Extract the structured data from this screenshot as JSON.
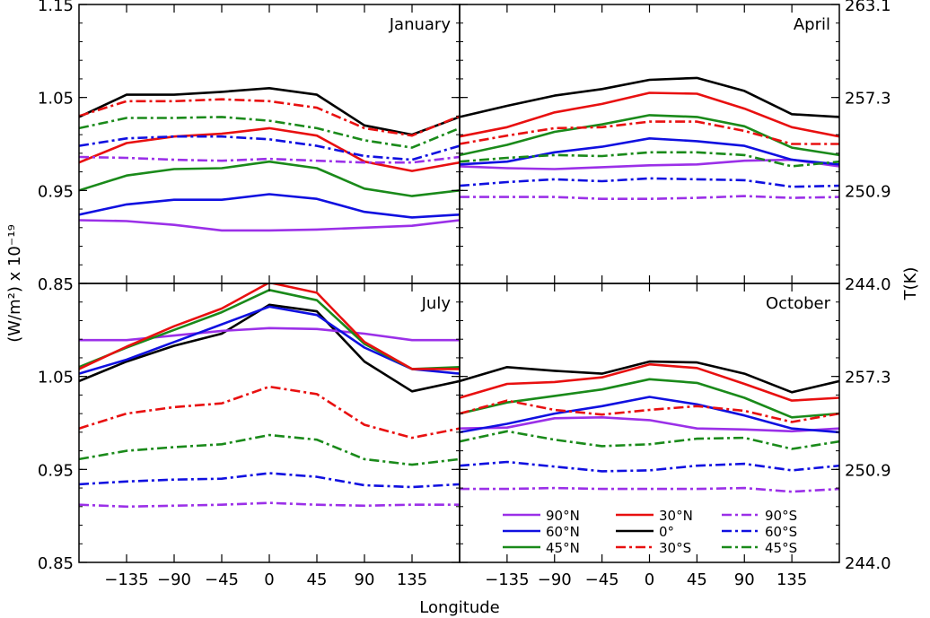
{
  "chart_data": {
    "type": "line",
    "x": [
      -180,
      -135,
      -90,
      -45,
      0,
      45,
      90,
      135,
      180
    ],
    "xlim": [
      -180,
      180
    ],
    "ylim": [
      0.85,
      1.15
    ],
    "xlabel": "Longitude",
    "ylabel": "(W/m²) x 10⁻¹⁹",
    "y2label": "T(K)",
    "xticks": [
      "-135",
      "-90",
      "-45",
      "0",
      "45",
      "90",
      "135"
    ],
    "yticks_top": [
      "0.85",
      "0.95",
      "1.05",
      "1.15"
    ],
    "yticks_bottom": [
      "0.85",
      "0.95",
      "1.05"
    ],
    "y2ticks_top": [
      "244.0",
      "250.9",
      "257.3",
      "263.1"
    ],
    "y2ticks_bottom": [
      "244.0",
      "250.9",
      "257.3"
    ],
    "series_style": {
      "90N": {
        "label": "90°N",
        "color": "#9b30e8",
        "dash": "solid"
      },
      "60N": {
        "label": "60°N",
        "color": "#1010e0",
        "dash": "solid"
      },
      "45N": {
        "label": "45°N",
        "color": "#1a8a1a",
        "dash": "solid"
      },
      "30N": {
        "label": "30°N",
        "color": "#e81010",
        "dash": "solid"
      },
      "0": {
        "label": "0°",
        "color": "#000000",
        "dash": "solid"
      },
      "30S": {
        "label": "30°S",
        "color": "#e81010",
        "dash": "dashdot"
      },
      "90S": {
        "label": "90°S",
        "color": "#9b30e8",
        "dash": "dashdot"
      },
      "60S": {
        "label": "60°S",
        "color": "#1010e0",
        "dash": "dashdot"
      },
      "45S": {
        "label": "45°S",
        "color": "#1a8a1a",
        "dash": "dashdot"
      }
    },
    "legend_order": [
      "90N",
      "30N",
      "90S",
      "60N",
      "0",
      "60S",
      "45N",
      "30S",
      "45S"
    ],
    "legend_location": "lower-right of October panel",
    "panels": [
      {
        "title": "January",
        "series": {
          "90N": [
            0.918,
            0.917,
            0.913,
            0.907,
            0.907,
            0.908,
            0.91,
            0.912,
            0.918
          ],
          "60N": [
            0.924,
            0.935,
            0.94,
            0.94,
            0.946,
            0.941,
            0.927,
            0.921,
            0.924
          ],
          "45N": [
            0.95,
            0.966,
            0.973,
            0.974,
            0.981,
            0.974,
            0.952,
            0.944,
            0.95
          ],
          "30N": [
            0.98,
            1.001,
            1.008,
            1.011,
            1.017,
            1.009,
            0.981,
            0.971,
            0.98
          ],
          "0": [
            1.029,
            1.053,
            1.053,
            1.056,
            1.06,
            1.053,
            1.02,
            1.01,
            1.029
          ],
          "30S": [
            1.03,
            1.046,
            1.046,
            1.048,
            1.046,
            1.039,
            1.017,
            1.009,
            1.03
          ],
          "90S": [
            0.986,
            0.985,
            0.983,
            0.982,
            0.984,
            0.982,
            0.98,
            0.98,
            0.986
          ],
          "60S": [
            0.998,
            1.006,
            1.008,
            1.008,
            1.005,
            0.998,
            0.987,
            0.983,
            0.998
          ],
          "45S": [
            1.017,
            1.028,
            1.028,
            1.029,
            1.025,
            1.017,
            1.004,
            0.996,
            1.017
          ]
        }
      },
      {
        "title": "April",
        "series": {
          "90N": [
            0.976,
            0.974,
            0.973,
            0.975,
            0.977,
            0.978,
            0.982,
            0.983,
            0.976
          ],
          "60N": [
            0.978,
            0.981,
            0.991,
            0.997,
            1.006,
            1.003,
            0.998,
            0.983,
            0.978
          ],
          "45N": [
            0.988,
            0.999,
            1.013,
            1.021,
            1.031,
            1.029,
            1.019,
            0.996,
            0.988
          ],
          "30N": [
            1.008,
            1.018,
            1.034,
            1.043,
            1.055,
            1.054,
            1.038,
            1.018,
            1.008
          ],
          "0": [
            1.029,
            1.041,
            1.052,
            1.059,
            1.069,
            1.071,
            1.057,
            1.032,
            1.029
          ],
          "30S": [
            1.0,
            1.009,
            1.017,
            1.018,
            1.024,
            1.024,
            1.014,
            1.0,
            1.0
          ],
          "90S": [
            0.943,
            0.943,
            0.943,
            0.941,
            0.941,
            0.942,
            0.944,
            0.942,
            0.943
          ],
          "60S": [
            0.955,
            0.959,
            0.962,
            0.96,
            0.963,
            0.962,
            0.961,
            0.954,
            0.955
          ],
          "45S": [
            0.981,
            0.985,
            0.988,
            0.987,
            0.991,
            0.991,
            0.988,
            0.976,
            0.981
          ]
        }
      },
      {
        "title": "July",
        "series": {
          "90N": [
            1.089,
            1.089,
            1.094,
            1.099,
            1.102,
            1.101,
            1.096,
            1.089,
            1.089
          ],
          "60N": [
            1.053,
            1.068,
            1.087,
            1.106,
            1.125,
            1.116,
            1.081,
            1.058,
            1.053
          ],
          "45N": [
            1.06,
            1.081,
            1.1,
            1.119,
            1.143,
            1.132,
            1.085,
            1.058,
            1.06
          ],
          "30N": [
            1.058,
            1.082,
            1.104,
            1.123,
            1.151,
            1.14,
            1.087,
            1.058,
            1.058
          ],
          "0": [
            1.045,
            1.066,
            1.083,
            1.096,
            1.127,
            1.12,
            1.066,
            1.034,
            1.045
          ],
          "30S": [
            0.994,
            1.01,
            1.017,
            1.021,
            1.039,
            1.031,
            0.998,
            0.984,
            0.994
          ],
          "90S": [
            0.912,
            0.91,
            0.911,
            0.912,
            0.914,
            0.912,
            0.911,
            0.912,
            0.912
          ],
          "60S": [
            0.934,
            0.937,
            0.939,
            0.94,
            0.946,
            0.942,
            0.933,
            0.931,
            0.934
          ],
          "45S": [
            0.961,
            0.97,
            0.974,
            0.977,
            0.987,
            0.982,
            0.961,
            0.955,
            0.961
          ]
        }
      },
      {
        "title": "October",
        "series": {
          "90N": [
            0.994,
            0.995,
            1.005,
            1.006,
            1.003,
            0.994,
            0.993,
            0.991,
            0.994
          ],
          "60N": [
            0.99,
            0.999,
            1.01,
            1.018,
            1.028,
            1.02,
            1.008,
            0.994,
            0.99
          ],
          "45N": [
            1.01,
            1.022,
            1.029,
            1.036,
            1.047,
            1.043,
            1.027,
            1.006,
            1.01
          ],
          "30N": [
            1.027,
            1.042,
            1.044,
            1.049,
            1.063,
            1.059,
            1.042,
            1.024,
            1.027
          ],
          "0": [
            1.045,
            1.06,
            1.056,
            1.053,
            1.066,
            1.065,
            1.053,
            1.033,
            1.045
          ],
          "30S": [
            1.01,
            1.024,
            1.014,
            1.009,
            1.014,
            1.018,
            1.013,
            1.001,
            1.01
          ],
          "90S": [
            0.929,
            0.929,
            0.93,
            0.929,
            0.929,
            0.929,
            0.93,
            0.926,
            0.929
          ],
          "60S": [
            0.954,
            0.958,
            0.953,
            0.948,
            0.949,
            0.954,
            0.956,
            0.949,
            0.954
          ],
          "45S": [
            0.98,
            0.991,
            0.982,
            0.975,
            0.977,
            0.983,
            0.984,
            0.972,
            0.98
          ]
        }
      }
    ]
  }
}
